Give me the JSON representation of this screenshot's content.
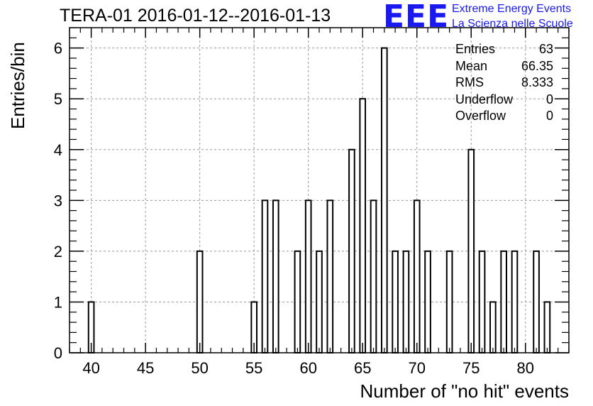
{
  "title": "TERA-01 2016-01-12--2016-01-13",
  "logo": {
    "mark": "EEE",
    "line1": "Extreme Energy Events",
    "line2": "La Scienza nelle Scuole"
  },
  "stats": [
    {
      "label": "Entries",
      "value": "63"
    },
    {
      "label": "Mean",
      "value": "66.35"
    },
    {
      "label": "RMS",
      "value": "8.333"
    },
    {
      "label": "Underflow",
      "value": "0"
    },
    {
      "label": "Overflow",
      "value": "0"
    }
  ],
  "chart_data": {
    "type": "bar",
    "title": "TERA-01 2016-01-12--2016-01-13",
    "xlabel": "Number of \"no hit\" events",
    "ylabel": "Entries/bin",
    "xlim": [
      38,
      84
    ],
    "ylim": [
      0,
      6.4
    ],
    "grid": true,
    "x_ticks": [
      40,
      45,
      50,
      55,
      60,
      65,
      70,
      75,
      80
    ],
    "y_ticks": [
      0,
      1,
      2,
      3,
      4,
      5,
      6
    ],
    "x": [
      40,
      50,
      55,
      56,
      57,
      59,
      60,
      61,
      62,
      64,
      65,
      66,
      67,
      68,
      69,
      70,
      71,
      73,
      75,
      76,
      77,
      78,
      79,
      81,
      82
    ],
    "values": [
      1,
      2,
      1,
      3,
      3,
      2,
      3,
      2,
      3,
      4,
      5,
      3,
      6,
      2,
      2,
      3,
      2,
      2,
      4,
      2,
      1,
      2,
      2,
      2,
      1
    ]
  }
}
